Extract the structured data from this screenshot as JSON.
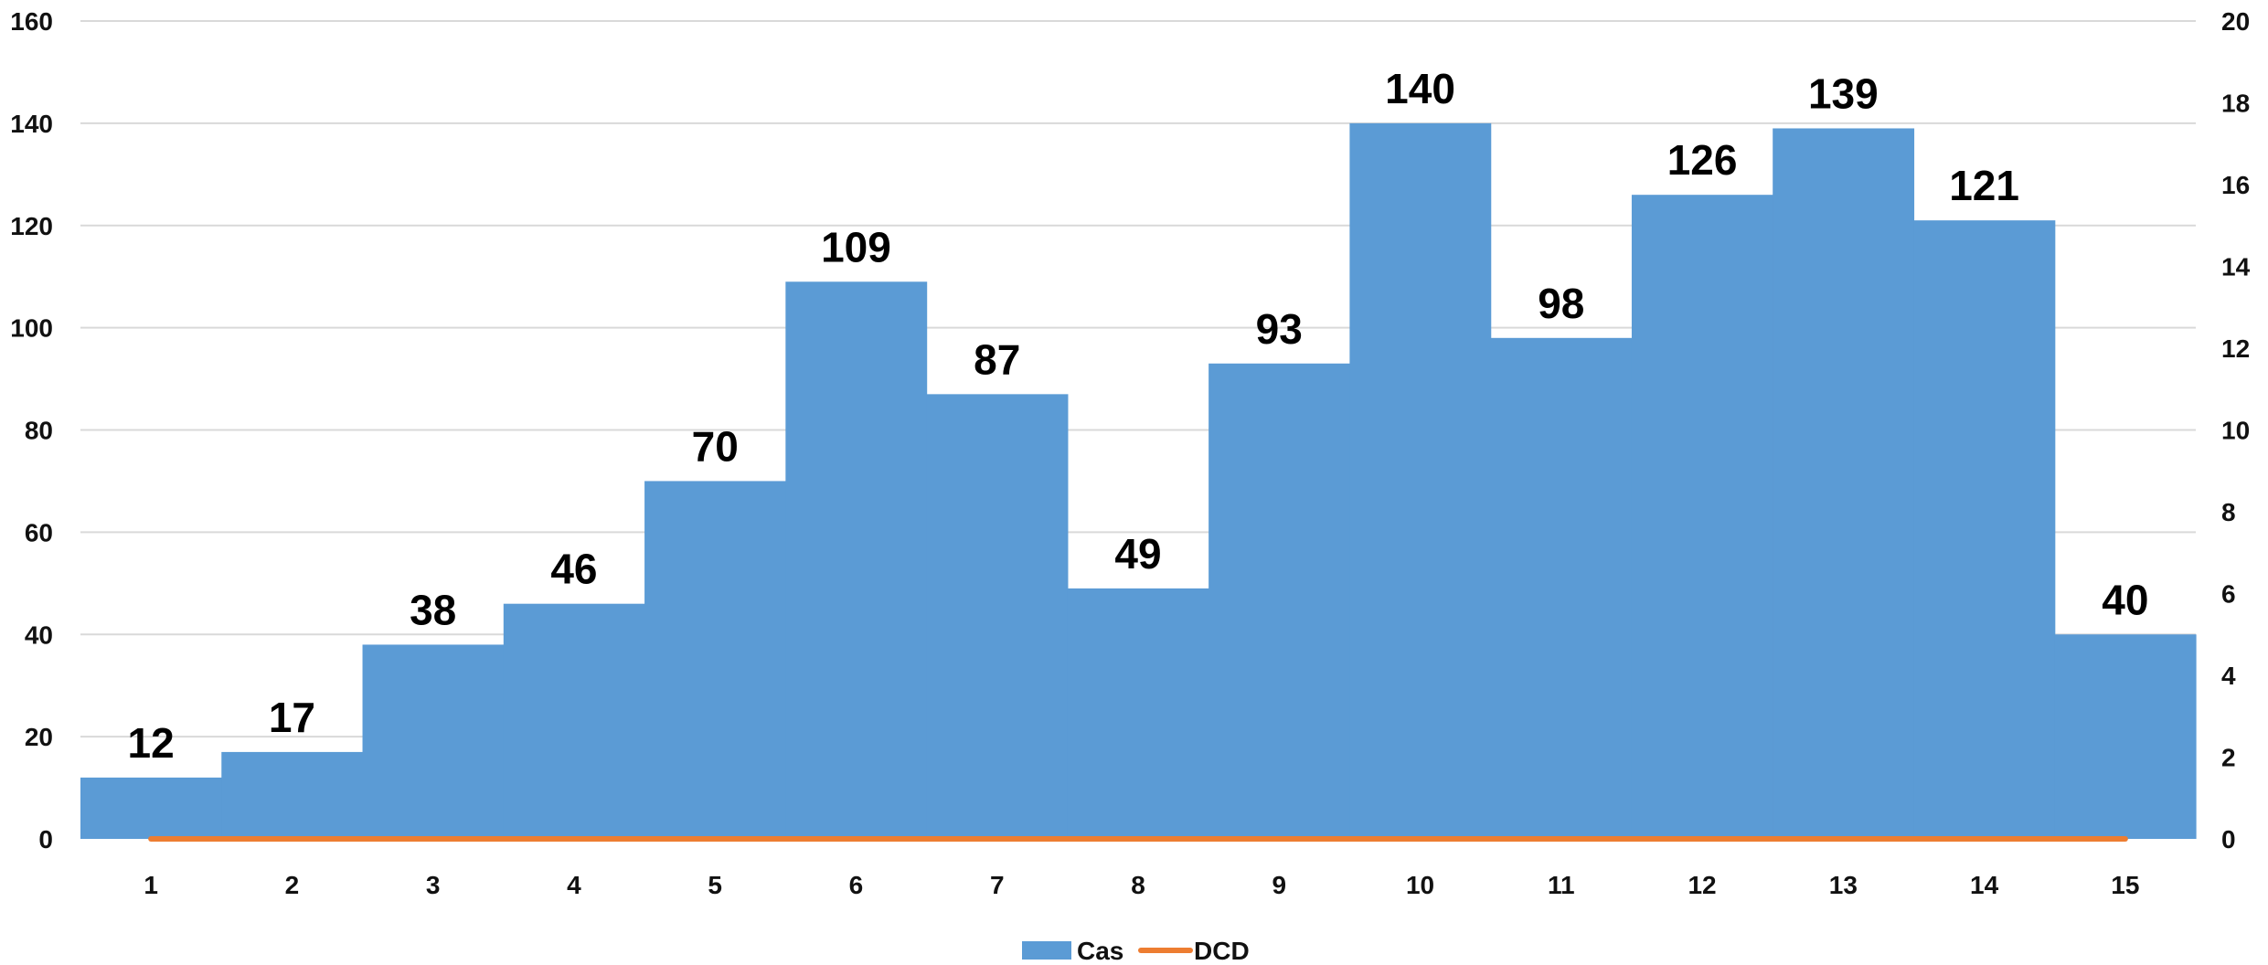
{
  "chart_data": {
    "type": "bar",
    "categories": [
      "1",
      "2",
      "3",
      "4",
      "5",
      "6",
      "7",
      "8",
      "9",
      "10",
      "11",
      "12",
      "13",
      "14",
      "15"
    ],
    "series": [
      {
        "name": "Cas",
        "type": "bar",
        "axis": "left",
        "color": "#5b9bd5",
        "values": [
          12,
          17,
          38,
          46,
          70,
          109,
          87,
          49,
          93,
          140,
          98,
          126,
          139,
          121,
          40
        ]
      },
      {
        "name": "DCD",
        "type": "line",
        "axis": "right",
        "color": "#ed7d31",
        "values": [
          0,
          0,
          0,
          0,
          0,
          0,
          0,
          0,
          0,
          0,
          0,
          0,
          0,
          0,
          0
        ]
      }
    ],
    "ylim": [
      0,
      160
    ],
    "y_ticks": [
      0,
      20,
      40,
      60,
      80,
      100,
      120,
      140,
      160
    ],
    "y2lim": [
      0,
      20
    ],
    "y2_ticks": [
      0,
      2,
      4,
      6,
      8,
      10,
      12,
      14,
      16,
      18,
      20
    ],
    "title": "",
    "xlabel": "",
    "ylabel": "",
    "y2label": "",
    "grid": true,
    "legend_position": "bottom",
    "data_labels": true
  }
}
